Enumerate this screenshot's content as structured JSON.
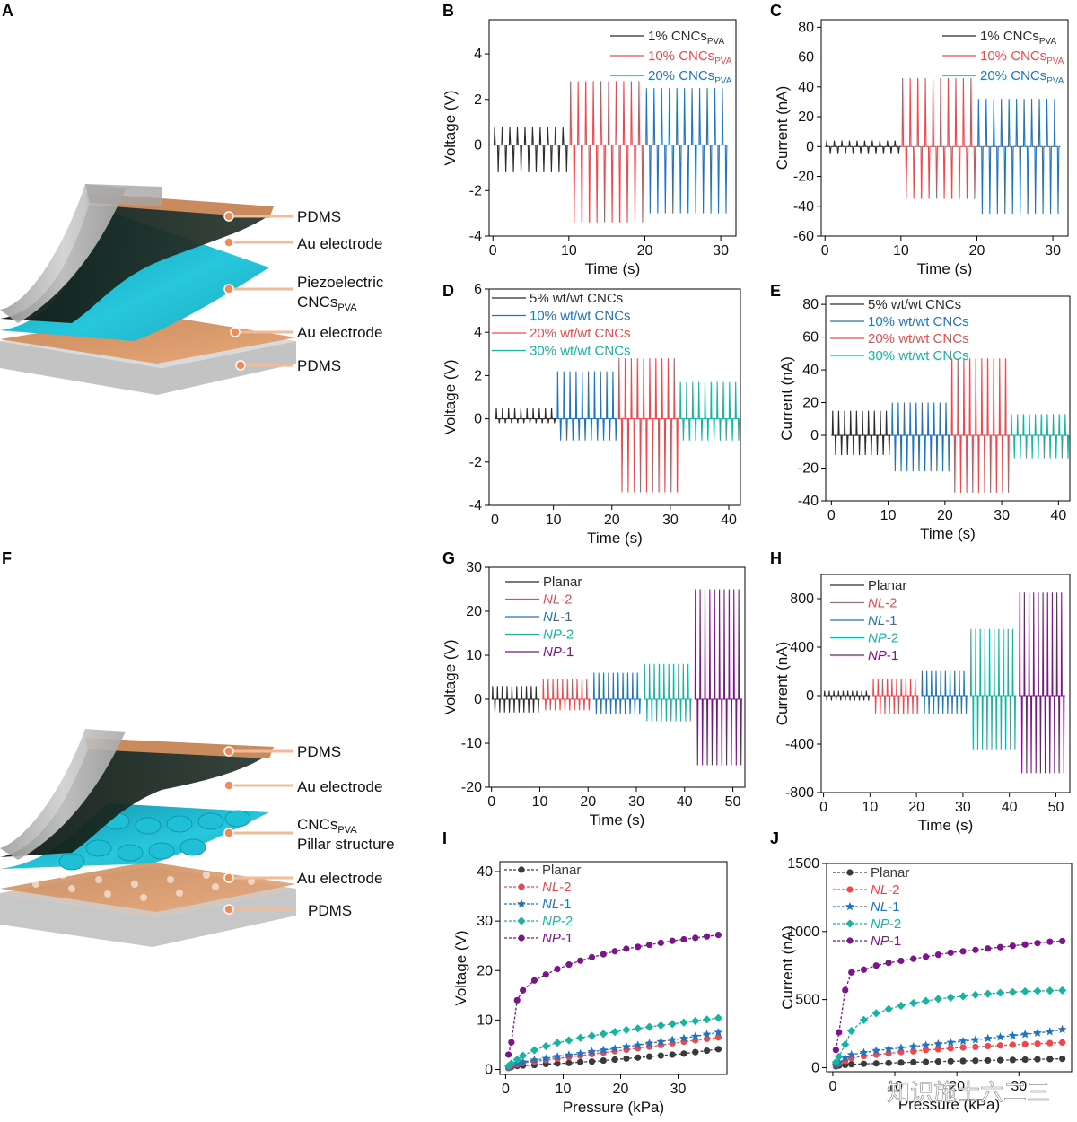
{
  "panel_letters": [
    "A",
    "B",
    "C",
    "D",
    "E",
    "F",
    "G",
    "H",
    "I",
    "J"
  ],
  "diagram_a": {
    "labels": [
      {
        "text": "PDMS"
      },
      {
        "text": "Au electrode"
      },
      {
        "text": "Piezoelectric",
        "line2": "CNCs",
        "line2_sub": "PVA"
      },
      {
        "text": "Au electrode"
      },
      {
        "text": "PDMS"
      }
    ]
  },
  "diagram_f": {
    "labels": [
      {
        "text": "PDMS"
      },
      {
        "text": "Au electrode"
      },
      {
        "text": "CNCs",
        "sub": "PVA",
        "line2": "Pillar structure"
      },
      {
        "text": "Au electrode"
      },
      {
        "text": "PDMS"
      }
    ]
  },
  "watermark": "知识施士六二三",
  "colors": {
    "black": "#2b2b2b",
    "red": "#f0474d",
    "blue": "#1f74c1",
    "teal": "#19b3a2",
    "purple": "#7b168a",
    "gray": "#4d4d4d"
  },
  "chart_data": [
    {
      "id": "B",
      "type": "line",
      "xlabel": "Time (s)",
      "ylabel": "Voltage (V)",
      "xlim": [
        -0.5,
        32
      ],
      "ylim": [
        -4,
        5.5
      ],
      "xticks": [
        0,
        10,
        20,
        30
      ],
      "yticks": [
        -4,
        -2,
        0,
        2,
        4
      ],
      "series": [
        {
          "name": "1% CNCs",
          "name_sub": "PVA",
          "color": "#2b2b2b",
          "t_start": 0,
          "t_end": 10,
          "cycles": 10,
          "max": 0.8,
          "min": -1.2
        },
        {
          "name": "10% CNCs",
          "name_sub": "PVA",
          "color": "#f0474d",
          "t_start": 10,
          "t_end": 20,
          "cycles": 10,
          "max": 2.8,
          "min": -3.4
        },
        {
          "name": "20% CNCs",
          "name_sub": "PVA",
          "color": "#1f74c1",
          "t_start": 20,
          "t_end": 31,
          "cycles": 11,
          "max": 2.5,
          "min": -3.0
        }
      ]
    },
    {
      "id": "C",
      "type": "line",
      "xlabel": "Time (s)",
      "ylabel": "Current (nA)",
      "xlim": [
        -0.5,
        32
      ],
      "ylim": [
        -60,
        85
      ],
      "xticks": [
        0,
        10,
        20,
        30
      ],
      "yticks": [
        -60,
        -40,
        -20,
        0,
        20,
        40,
        60,
        80
      ],
      "series": [
        {
          "name": "1% CNCs",
          "name_sub": "PVA",
          "color": "#2b2b2b",
          "t_start": 0,
          "t_end": 10,
          "cycles": 10,
          "max": 4,
          "min": -5
        },
        {
          "name": "10% CNCs",
          "name_sub": "PVA",
          "color": "#f0474d",
          "t_start": 10,
          "t_end": 20,
          "cycles": 10,
          "max": 46,
          "min": -35
        },
        {
          "name": "20% CNCs",
          "name_sub": "PVA",
          "color": "#1f74c1",
          "t_start": 20,
          "t_end": 31,
          "cycles": 11,
          "max": 32,
          "min": -45
        }
      ]
    },
    {
      "id": "D",
      "type": "line",
      "xlabel": "Time (s)",
      "ylabel": "Voltage (V)",
      "xlim": [
        -1,
        42
      ],
      "ylim": [
        -4,
        6
      ],
      "xticks": [
        0,
        10,
        20,
        30,
        40
      ],
      "yticks": [
        -4,
        -2,
        0,
        2,
        4,
        6
      ],
      "series": [
        {
          "name": "5% wt/wt CNCs",
          "color": "#2b2b2b",
          "t_start": 0,
          "t_end": 10.5,
          "cycles": 10,
          "max": 0.5,
          "min": -0.2
        },
        {
          "name": "10% wt/wt CNCs",
          "color": "#1f74c1",
          "t_start": 10.5,
          "t_end": 21,
          "cycles": 10,
          "max": 2.2,
          "min": -1.0
        },
        {
          "name": "20% wt/wt CNCs",
          "color": "#f0474d",
          "t_start": 21,
          "t_end": 31.5,
          "cycles": 10,
          "max": 2.8,
          "min": -3.4
        },
        {
          "name": "30% wt/wt CNCs",
          "color": "#19b3a2",
          "t_start": 31.5,
          "t_end": 42,
          "cycles": 10,
          "max": 1.7,
          "min": -1.0
        }
      ]
    },
    {
      "id": "E",
      "type": "line",
      "xlabel": "Time (s)",
      "ylabel": "Current (nA)",
      "xlim": [
        -1,
        42
      ],
      "ylim": [
        -40,
        85
      ],
      "xticks": [
        0,
        10,
        20,
        30,
        40
      ],
      "yticks": [
        -40,
        -20,
        0,
        20,
        40,
        60,
        80
      ],
      "series": [
        {
          "name": "5% wt/wt CNCs",
          "color": "#2b2b2b",
          "t_start": 0,
          "t_end": 10.5,
          "cycles": 10,
          "max": 15,
          "min": -12
        },
        {
          "name": "10% wt/wt CNCs",
          "color": "#1f74c1",
          "t_start": 10.5,
          "t_end": 21,
          "cycles": 10,
          "max": 20,
          "min": -22
        },
        {
          "name": "20% wt/wt CNCs",
          "color": "#f0474d",
          "t_start": 21,
          "t_end": 31.5,
          "cycles": 10,
          "max": 47,
          "min": -35
        },
        {
          "name": "30% wt/wt CNCs",
          "color": "#19b3a2",
          "t_start": 31.5,
          "t_end": 42,
          "cycles": 10,
          "max": 13,
          "min": -14
        }
      ]
    },
    {
      "id": "G",
      "type": "line",
      "xlabel": "Time (s)",
      "ylabel": "Voltage (V)",
      "xlim": [
        -0.5,
        52.5
      ],
      "ylim": [
        -20,
        30
      ],
      "xticks": [
        0,
        10,
        20,
        30,
        40,
        50
      ],
      "yticks": [
        -20,
        -10,
        0,
        10,
        20,
        30
      ],
      "series": [
        {
          "name": "Planar",
          "italic": false,
          "color": "#2b2b2b",
          "t_start": 0,
          "t_end": 10,
          "cycles": 10,
          "max": 3,
          "min": -3
        },
        {
          "name": "NL",
          "suffix": "-2",
          "italic": true,
          "color": "#f0474d",
          "t_start": 10.5,
          "t_end": 20.5,
          "cycles": 10,
          "max": 4.5,
          "min": -2.5
        },
        {
          "name": "NL",
          "suffix": "-1",
          "italic": true,
          "color": "#1f74c1",
          "t_start": 21,
          "t_end": 31,
          "cycles": 10,
          "max": 6,
          "min": -3.5
        },
        {
          "name": "NP",
          "suffix": "-2",
          "italic": true,
          "color": "#19b3a2",
          "t_start": 31.5,
          "t_end": 41.5,
          "cycles": 10,
          "max": 8,
          "min": -5
        },
        {
          "name": "NP",
          "suffix": "-1",
          "italic": true,
          "color": "#7b168a",
          "t_start": 42,
          "t_end": 52,
          "cycles": 10,
          "max": 25,
          "min": -15
        }
      ]
    },
    {
      "id": "H",
      "type": "line",
      "xlabel": "Time (s)",
      "ylabel": "Current (nA)",
      "xlim": [
        -0.5,
        53
      ],
      "ylim": [
        -800,
        1000
      ],
      "xticks": [
        0,
        10,
        20,
        30,
        40,
        50
      ],
      "yticks": [
        -800,
        -400,
        0,
        400,
        800
      ],
      "series": [
        {
          "name": "Planar",
          "italic": false,
          "color": "#2b2b2b",
          "t_start": 0,
          "t_end": 10,
          "cycles": 10,
          "max": 40,
          "min": -40
        },
        {
          "name": "NL",
          "suffix": "-2",
          "italic": true,
          "color": "#f0474d",
          "t_start": 10.5,
          "t_end": 20.5,
          "cycles": 10,
          "max": 140,
          "min": -150
        },
        {
          "name": "NL",
          "suffix": "-1",
          "italic": true,
          "color": "#1f74c1",
          "t_start": 21,
          "t_end": 31,
          "cycles": 10,
          "max": 210,
          "min": -150
        },
        {
          "name": "NP",
          "suffix": "-2",
          "italic": true,
          "color": "#19b3a2",
          "t_start": 31.5,
          "t_end": 41.5,
          "cycles": 10,
          "max": 550,
          "min": -450
        },
        {
          "name": "NP",
          "suffix": "-1",
          "italic": true,
          "color": "#7b168a",
          "t_start": 42,
          "t_end": 52,
          "cycles": 10,
          "max": 850,
          "min": -640
        }
      ]
    },
    {
      "id": "I",
      "type": "line",
      "xlabel": "Pressure (kPa)",
      "ylabel": "Voltage (V)",
      "xlim": [
        -1,
        38.5
      ],
      "ylim": [
        -1,
        42
      ],
      "xticks": [
        0,
        10,
        20,
        30
      ],
      "yticks": [
        0,
        10,
        20,
        30,
        40
      ],
      "x": [
        0.5,
        1,
        2,
        3,
        5,
        7,
        9,
        11,
        13,
        15,
        17,
        19,
        21,
        23,
        25,
        27,
        29,
        31,
        33,
        35,
        37
      ],
      "series": [
        {
          "name": "Planar",
          "italic": false,
          "color": "#3a3a3a",
          "marker": "circle",
          "values": [
            0.3,
            0.5,
            0.7,
            0.8,
            0.9,
            1.1,
            1.2,
            1.3,
            1.5,
            1.6,
            1.8,
            2.0,
            2.2,
            2.4,
            2.6,
            2.8,
            3.0,
            3.2,
            3.5,
            3.8,
            4.1
          ]
        },
        {
          "name": "NL",
          "suffix": "-2",
          "italic": true,
          "color": "#f0474d",
          "marker": "circle",
          "values": [
            0.4,
            0.7,
            1.0,
            1.3,
            1.6,
            1.9,
            2.2,
            2.5,
            2.8,
            3.1,
            3.4,
            3.7,
            4.0,
            4.3,
            4.6,
            4.9,
            5.3,
            5.6,
            5.9,
            6.2,
            6.5
          ]
        },
        {
          "name": "NL",
          "suffix": "-1",
          "italic": true,
          "color": "#1f74c1",
          "marker": "star",
          "values": [
            0.5,
            0.8,
            1.2,
            1.5,
            1.9,
            2.2,
            2.6,
            2.9,
            3.2,
            3.6,
            3.9,
            4.2,
            4.6,
            4.9,
            5.3,
            5.6,
            6.0,
            6.3,
            6.7,
            7.1,
            7.5
          ]
        },
        {
          "name": "NP",
          "suffix": "-2",
          "italic": true,
          "color": "#19b3a2",
          "marker": "diamond",
          "values": [
            0.7,
            1.2,
            2.0,
            2.8,
            3.9,
            4.7,
            5.4,
            5.9,
            6.4,
            6.8,
            7.2,
            7.6,
            8.0,
            8.3,
            8.6,
            8.9,
            9.2,
            9.5,
            9.8,
            10.1,
            10.4
          ]
        },
        {
          "name": "NP",
          "suffix": "-1",
          "italic": true,
          "color": "#7b168a",
          "marker": "circle",
          "values": [
            3,
            5.5,
            14,
            16,
            18,
            19.2,
            20.3,
            21.2,
            22,
            22.7,
            23.3,
            23.9,
            24.4,
            24.8,
            25.2,
            25.6,
            26,
            26.3,
            26.6,
            26.9,
            27.2
          ]
        }
      ]
    },
    {
      "id": "J",
      "type": "line",
      "xlabel": "Pressure (kPa)",
      "ylabel": "Current (nA)",
      "xlim": [
        -1,
        38.5
      ],
      "ylim": [
        -30,
        1500
      ],
      "xticks": [
        0,
        10,
        20,
        30
      ],
      "yticks": [
        0,
        500,
        1000,
        1500
      ],
      "x": [
        0.5,
        1,
        2,
        3,
        5,
        7,
        9,
        11,
        13,
        15,
        17,
        19,
        21,
        23,
        25,
        27,
        29,
        31,
        33,
        35,
        37
      ],
      "series": [
        {
          "name": "Planar",
          "italic": false,
          "color": "#3a3a3a",
          "marker": "circle",
          "values": [
            10,
            15,
            20,
            25,
            28,
            31,
            34,
            37,
            40,
            42,
            45,
            47,
            49,
            51,
            53,
            55,
            57,
            59,
            61,
            63,
            65
          ]
        },
        {
          "name": "NL",
          "suffix": "-2",
          "italic": true,
          "color": "#f0474d",
          "marker": "circle",
          "values": [
            20,
            30,
            50,
            70,
            85,
            95,
            105,
            115,
            120,
            130,
            135,
            142,
            148,
            152,
            158,
            163,
            168,
            172,
            176,
            180,
            185
          ]
        },
        {
          "name": "NL",
          "suffix": "-1",
          "italic": true,
          "color": "#1f74c1",
          "marker": "star",
          "values": [
            20,
            40,
            70,
            95,
            110,
            125,
            135,
            145,
            155,
            165,
            175,
            185,
            195,
            205,
            215,
            225,
            235,
            245,
            255,
            265,
            280
          ]
        },
        {
          "name": "NP",
          "suffix": "-2",
          "italic": true,
          "color": "#19b3a2",
          "marker": "diamond",
          "values": [
            40,
            80,
            170,
            270,
            350,
            400,
            430,
            455,
            475,
            490,
            505,
            515,
            525,
            535,
            543,
            550,
            555,
            560,
            563,
            566,
            568
          ]
        },
        {
          "name": "NP",
          "suffix": "-1",
          "italic": true,
          "color": "#7b168a",
          "marker": "circle",
          "values": [
            130,
            260,
            570,
            700,
            720,
            750,
            770,
            785,
            800,
            815,
            830,
            845,
            855,
            865,
            875,
            885,
            895,
            905,
            915,
            925,
            930
          ]
        }
      ]
    }
  ]
}
